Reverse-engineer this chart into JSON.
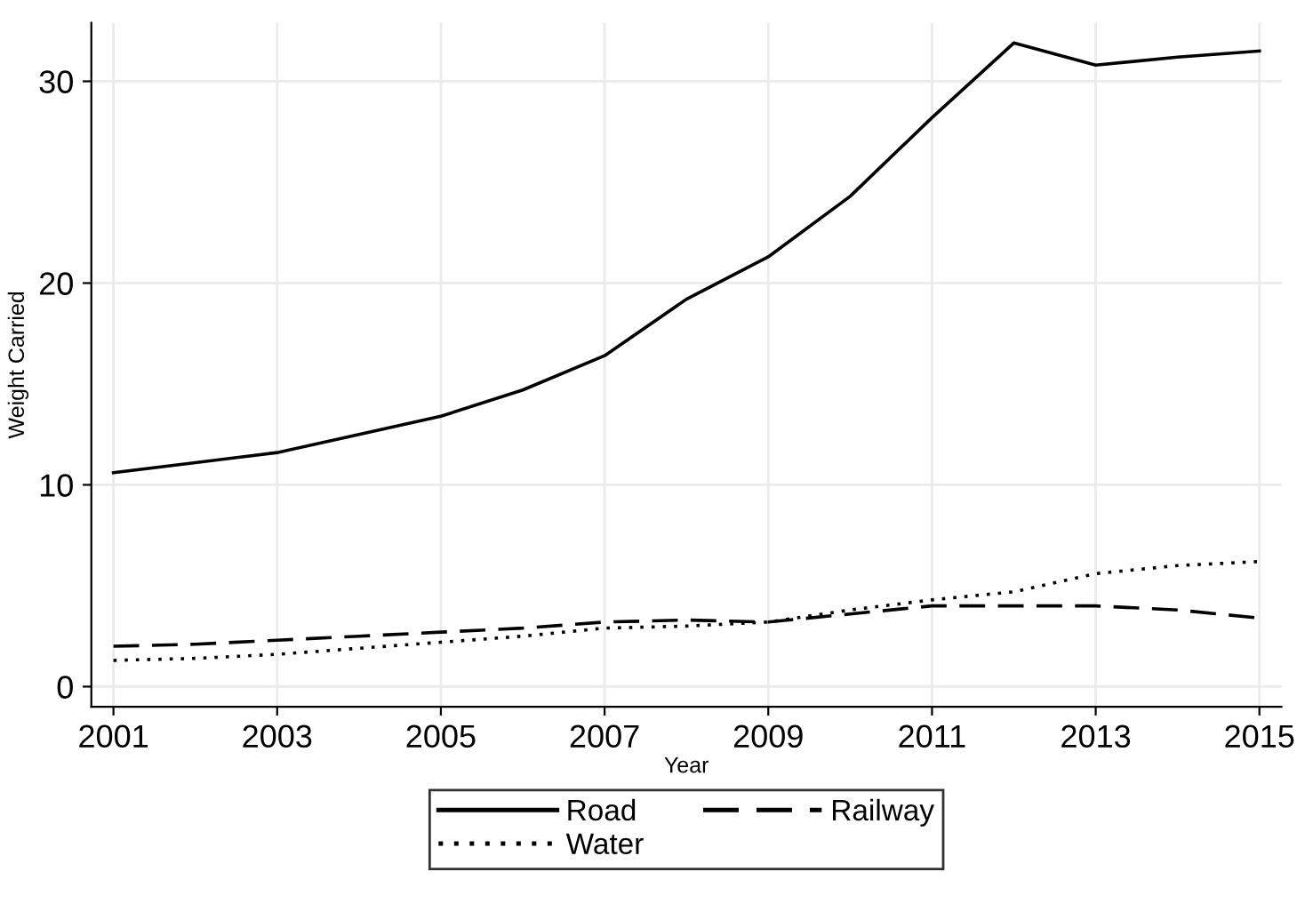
{
  "chart_data": {
    "type": "line",
    "xlabel": "Year",
    "ylabel": "Weight Carried",
    "x": [
      2001,
      2002,
      2003,
      2004,
      2005,
      2006,
      2007,
      2008,
      2009,
      2010,
      2011,
      2012,
      2013,
      2014,
      2015
    ],
    "series": [
      {
        "name": "Road",
        "color": "#000000",
        "line_style": "solid",
        "values": [
          10.6,
          11.1,
          11.6,
          12.5,
          13.4,
          14.7,
          16.4,
          19.2,
          21.3,
          24.3,
          28.2,
          31.9,
          30.8,
          31.2,
          31.5
        ]
      },
      {
        "name": "Railway",
        "color": "#000000",
        "line_style": "dashed",
        "values": [
          2.0,
          2.1,
          2.3,
          2.5,
          2.7,
          2.9,
          3.2,
          3.3,
          3.2,
          3.6,
          4.0,
          4.0,
          4.0,
          3.8,
          3.4
        ]
      },
      {
        "name": "Water",
        "color": "#000000",
        "line_style": "dotted",
        "values": [
          1.3,
          1.4,
          1.6,
          1.9,
          2.2,
          2.5,
          2.9,
          3.0,
          3.2,
          3.8,
          4.3,
          4.7,
          5.6,
          6.0,
          6.2
        ]
      }
    ],
    "xlim": [
      2000.73,
      2015.27
    ],
    "xticks": [
      2001,
      2003,
      2005,
      2007,
      2009,
      2011,
      2013,
      2015
    ],
    "ylim": [
      -1,
      32.9
    ],
    "yticks": [
      0,
      10,
      20,
      30
    ],
    "grid": true,
    "legend": "bottom"
  }
}
